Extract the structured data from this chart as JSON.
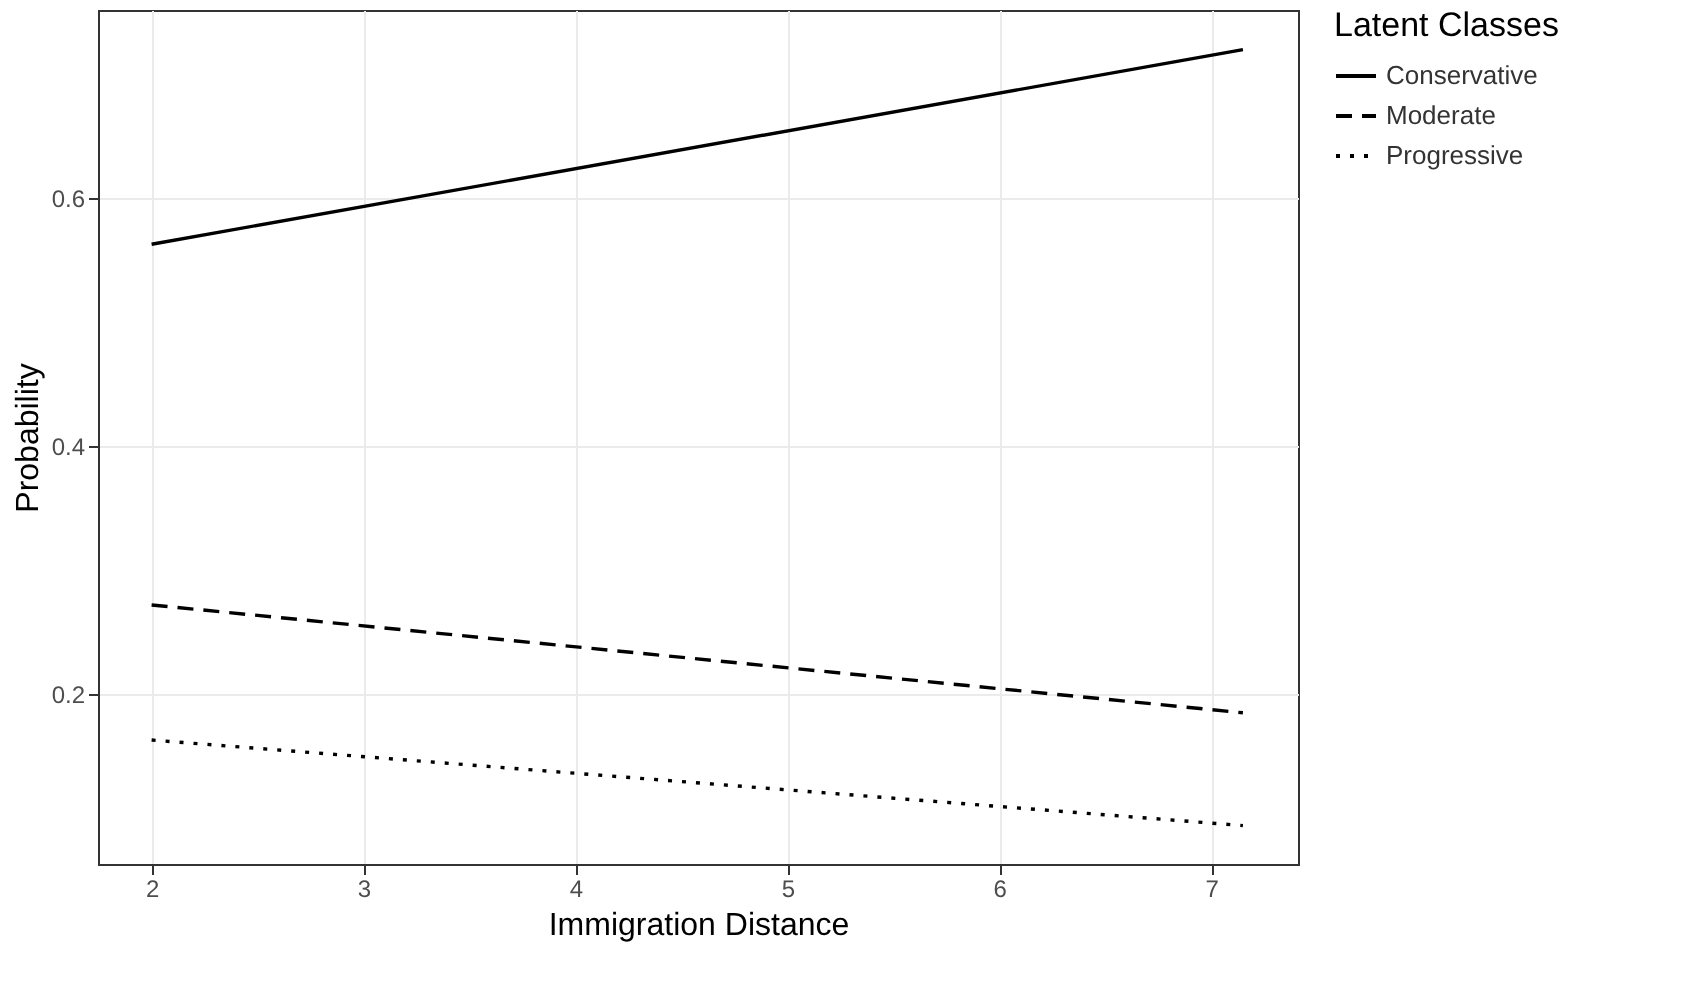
{
  "chart_data": {
    "type": "line",
    "xlabel": "Immigration Distance",
    "ylabel": "Probability",
    "legend_title": "Latent Classes",
    "legend": "right",
    "grid": true,
    "xlim": [
      1.747,
      7.41
    ],
    "ylim": [
      0.063,
      0.752
    ],
    "xticks": [
      2,
      3,
      4,
      5,
      6,
      7
    ],
    "yticks": [
      0.2,
      0.4,
      0.6
    ],
    "x": [
      2,
      7.15
    ],
    "series": [
      {
        "name": "Conservative",
        "color": "#000000",
        "line_style": "solid",
        "values": [
          0.563,
          0.72
        ]
      },
      {
        "name": "Moderate",
        "color": "#000000",
        "line_style": "dashed",
        "values": [
          0.272,
          0.185
        ]
      },
      {
        "name": "Progressive",
        "color": "#000000",
        "line_style": "dotted",
        "values": [
          0.163,
          0.094
        ]
      }
    ]
  }
}
